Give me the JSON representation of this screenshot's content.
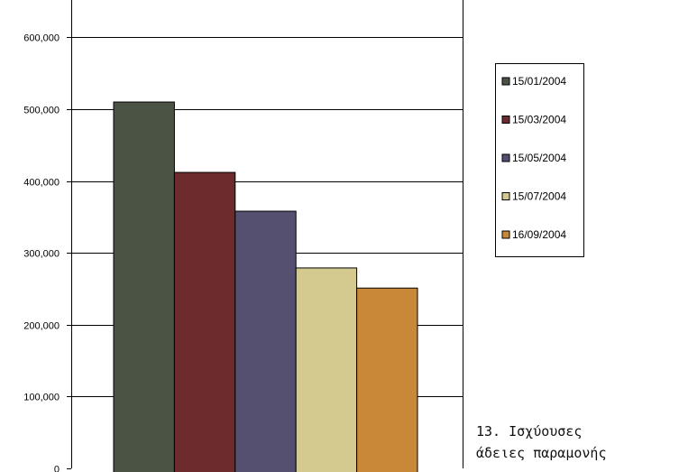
{
  "chart_data": {
    "type": "bar",
    "categories": [
      "15/01/2004",
      "15/03/2004",
      "15/05/2004",
      "15/07/2004",
      "16/09/2004"
    ],
    "values": [
      510000,
      412000,
      358000,
      279000,
      251000
    ],
    "colors": [
      "#4a5344",
      "#6e2b2e",
      "#55506f",
      "#d4c98f",
      "#c98838"
    ],
    "ylim": [
      0,
      650000
    ],
    "yticks": [
      0,
      100000,
      200000,
      300000,
      400000,
      500000,
      600000
    ],
    "ytick_labels": [
      "0",
      "100,000",
      "200,000",
      "300,000",
      "400,000",
      "500,000",
      "600,000"
    ],
    "grid": true,
    "legend_position": "right"
  },
  "caption": {
    "line1": "13. Ισχύουσες",
    "line2": "άδειες παραμονής"
  }
}
